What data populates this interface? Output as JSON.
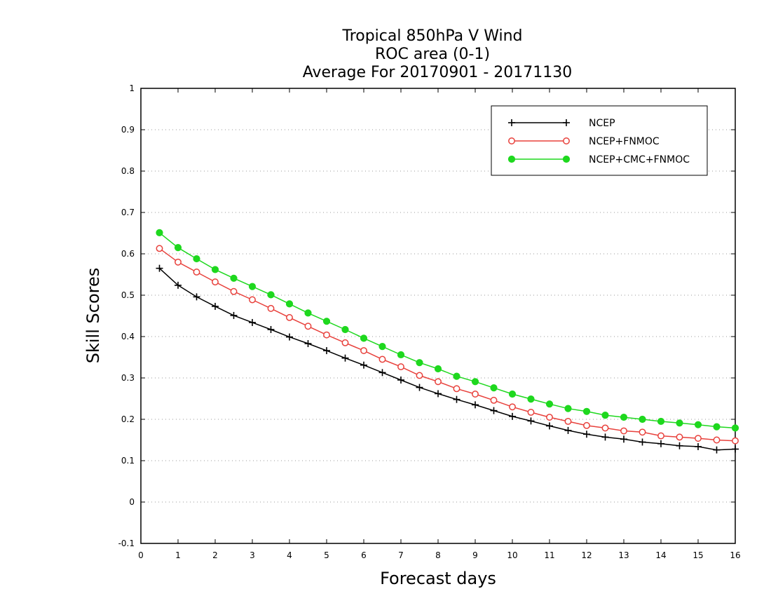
{
  "chart_data": {
    "type": "line",
    "title_lines": [
      "Tropical 850hPa V Wind",
      "ROC area (0-1)",
      "Average For 20170901 - 20171130"
    ],
    "xlabel": "Forecast days",
    "ylabel": "Skill Scores",
    "xlim": [
      0,
      16
    ],
    "ylim": [
      -0.1,
      1
    ],
    "x_ticks": [
      0,
      1,
      2,
      3,
      4,
      5,
      6,
      7,
      8,
      9,
      10,
      11,
      12,
      13,
      14,
      15,
      16
    ],
    "x_tick_labels": [
      "0",
      "1",
      "2",
      "3",
      "4",
      "5",
      "6",
      "7",
      "8",
      "9",
      "10",
      "11",
      "12",
      "13",
      "14",
      "15",
      "16"
    ],
    "y_ticks": [
      -0.1,
      0,
      0.1,
      0.2,
      0.3,
      0.4,
      0.5,
      0.6,
      0.7,
      0.8,
      0.9,
      1
    ],
    "y_tick_labels": [
      "-0.1",
      "0",
      "0.1",
      "0.2",
      "0.3",
      "0.4",
      "0.5",
      "0.6",
      "0.7",
      "0.8",
      "0.9",
      "1"
    ],
    "grid": "horizontal dotted",
    "legend_position": "top-right",
    "x": [
      0.5,
      1,
      1.5,
      2,
      2.5,
      3,
      3.5,
      4,
      4.5,
      5,
      5.5,
      6,
      6.5,
      7,
      7.5,
      8,
      8.5,
      9,
      9.5,
      10,
      10.5,
      11,
      11.5,
      12,
      12.5,
      13,
      13.5,
      14,
      14.5,
      15,
      15.5,
      16
    ],
    "series": [
      {
        "name": "NCEP",
        "color": "#000000",
        "marker": "plus",
        "values": [
          0.565,
          0.524,
          0.496,
          0.473,
          0.451,
          0.434,
          0.417,
          0.399,
          0.383,
          0.366,
          0.348,
          0.331,
          0.313,
          0.295,
          0.277,
          0.262,
          0.248,
          0.235,
          0.221,
          0.207,
          0.196,
          0.184,
          0.173,
          0.164,
          0.157,
          0.152,
          0.145,
          0.141,
          0.136,
          0.134,
          0.126,
          0.128
        ]
      },
      {
        "name": "NCEP+FNMOC",
        "color": "#e8413c",
        "marker": "open-circle",
        "values": [
          0.613,
          0.58,
          0.556,
          0.532,
          0.509,
          0.489,
          0.468,
          0.446,
          0.425,
          0.404,
          0.385,
          0.366,
          0.345,
          0.327,
          0.306,
          0.291,
          0.274,
          0.261,
          0.246,
          0.23,
          0.217,
          0.205,
          0.195,
          0.185,
          0.179,
          0.172,
          0.169,
          0.16,
          0.157,
          0.154,
          0.15,
          0.148
        ]
      },
      {
        "name": "NCEP+CMC+FNMOC",
        "color": "#1ed81e",
        "marker": "filled-circle",
        "values": [
          0.651,
          0.615,
          0.588,
          0.562,
          0.541,
          0.521,
          0.501,
          0.479,
          0.457,
          0.437,
          0.417,
          0.396,
          0.376,
          0.356,
          0.337,
          0.322,
          0.304,
          0.291,
          0.276,
          0.261,
          0.249,
          0.237,
          0.226,
          0.219,
          0.21,
          0.205,
          0.2,
          0.195,
          0.191,
          0.187,
          0.182,
          0.179
        ]
      }
    ]
  }
}
